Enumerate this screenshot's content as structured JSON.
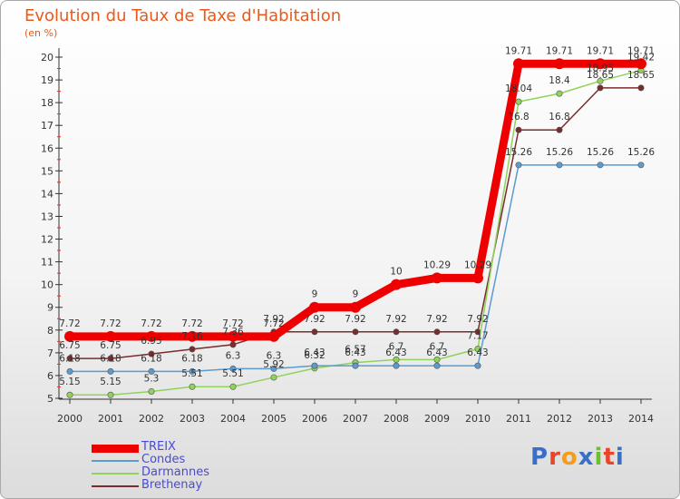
{
  "title": "Evolution du Taux de Taxe d'Habitation",
  "subtitle": "(en %)",
  "logo": {
    "text": "Proxiti",
    "colors": [
      "#3a6fc8",
      "#e8452a",
      "#f39c1e",
      "#3a6fc8",
      "#6cbf2e",
      "#e8452a",
      "#3a6fc8"
    ]
  },
  "chart_data": {
    "type": "line",
    "x": [
      2000,
      2001,
      2002,
      2003,
      2004,
      2005,
      2006,
      2007,
      2008,
      2009,
      2010,
      2011,
      2012,
      2013,
      2014
    ],
    "ylim": [
      5,
      20
    ],
    "yticks": [
      5,
      6,
      7,
      8,
      9,
      10,
      11,
      12,
      13,
      14,
      15,
      16,
      17,
      18,
      19,
      20
    ],
    "grid": "minor ticks only",
    "legend_position": "bottom-left",
    "series": [
      {
        "name": "TREIX",
        "color": "#ee0000",
        "values": [
          7.72,
          7.72,
          7.72,
          7.72,
          7.72,
          7.72,
          9,
          9,
          10,
          10.29,
          10.29,
          19.71,
          19.71,
          19.71,
          19.71
        ],
        "labels": [
          "7.72",
          "7.72",
          "7.72",
          "7.72",
          "7.72",
          "7.72",
          "9",
          "9",
          "10",
          "10.29",
          "10.29",
          "19.71",
          "19.71",
          "19.71",
          "19.71"
        ]
      },
      {
        "name": "Condes",
        "color": "#5b9bd0",
        "values": [
          6.18,
          6.18,
          6.18,
          6.18,
          6.3,
          6.3,
          6.43,
          6.43,
          6.43,
          6.43,
          6.43,
          15.26,
          15.26,
          15.26,
          15.26
        ],
        "labels": [
          "6.18",
          "6.18",
          "6.18",
          "6.18",
          "6.3",
          "6.3",
          "6.43",
          "6.43",
          "6.43",
          "6.43",
          "6.43",
          "15.26",
          "15.26",
          "15.26",
          "15.26"
        ]
      },
      {
        "name": "Darmannes",
        "color": "#8fd35a",
        "values": [
          5.15,
          5.15,
          5.3,
          5.51,
          5.51,
          5.92,
          6.32,
          6.57,
          6.7,
          6.7,
          7.17,
          18.04,
          18.4,
          18.95,
          19.42
        ],
        "labels": [
          "5.15",
          "5.15",
          "5.3",
          "5.51",
          "5.51",
          "5.92",
          "6.32",
          "6.57",
          "6.7",
          "6.7",
          "7.17",
          "18.04",
          "18.4",
          "18.95",
          "19.42"
        ]
      },
      {
        "name": "Brethenay",
        "color": "#7a2c2c",
        "values": [
          6.75,
          6.75,
          6.95,
          7.16,
          7.36,
          7.92,
          7.92,
          7.92,
          7.92,
          7.92,
          7.92,
          16.8,
          16.8,
          18.65,
          18.65
        ],
        "labels": [
          "6.75",
          "6.75",
          "6.95",
          "7.16",
          "7.36",
          "7.92",
          "7.92",
          "7.92",
          "7.92",
          "7.92",
          "7.92",
          "16.8",
          "16.8",
          "18.65",
          "18.65"
        ]
      }
    ]
  }
}
